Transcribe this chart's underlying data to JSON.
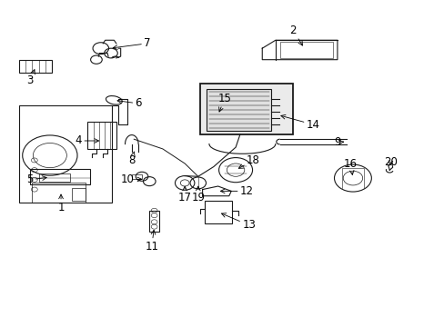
{
  "bg_color": "#ffffff",
  "line_color": "#1a1a1a",
  "lw": 0.8,
  "fig_w": 4.89,
  "fig_h": 3.6,
  "dpi": 100,
  "label_fontsize": 8.5,
  "label_positions": {
    "1": [
      0.135,
      0.415,
      0.135,
      0.365
    ],
    "2": [
      0.59,
      0.91,
      0.66,
      0.91
    ],
    "3": [
      0.065,
      0.79,
      0.065,
      0.755
    ],
    "4": [
      0.21,
      0.57,
      0.175,
      0.57
    ],
    "5": [
      0.11,
      0.45,
      0.065,
      0.45
    ],
    "6": [
      0.265,
      0.685,
      0.31,
      0.685
    ],
    "7": [
      0.265,
      0.85,
      0.33,
      0.87
    ],
    "8": [
      0.295,
      0.54,
      0.295,
      0.51
    ],
    "9": [
      0.7,
      0.565,
      0.76,
      0.565
    ],
    "10": [
      0.31,
      0.45,
      0.285,
      0.45
    ],
    "11": [
      0.34,
      0.285,
      0.34,
      0.245
    ],
    "12": [
      0.49,
      0.4,
      0.555,
      0.415
    ],
    "13": [
      0.5,
      0.32,
      0.56,
      0.31
    ],
    "14": [
      0.635,
      0.62,
      0.705,
      0.62
    ],
    "15": [
      0.505,
      0.66,
      0.505,
      0.7
    ],
    "16": [
      0.79,
      0.46,
      0.79,
      0.5
    ],
    "17": [
      0.415,
      0.43,
      0.415,
      0.395
    ],
    "18": [
      0.53,
      0.49,
      0.57,
      0.51
    ],
    "19": [
      0.445,
      0.43,
      0.445,
      0.395
    ],
    "20": [
      0.88,
      0.465,
      0.88,
      0.505
    ]
  }
}
